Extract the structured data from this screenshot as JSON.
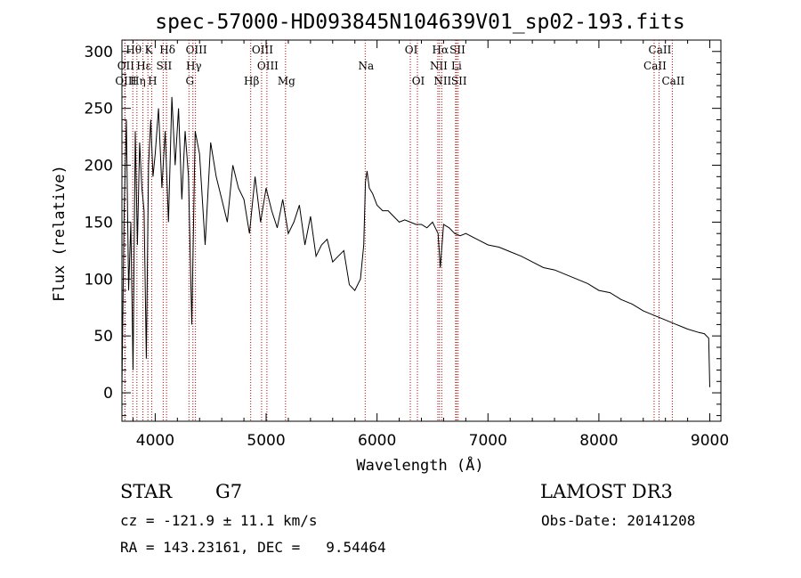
{
  "chart_data": {
    "type": "line",
    "title": "spec-57000-HD093845N104639V01_sp02-193.fits",
    "xlabel": "Wavelength (Å)",
    "ylabel": "Flux (relative)",
    "xlim": [
      3700,
      9100
    ],
    "ylim": [
      -25,
      310
    ],
    "xticks": [
      4000,
      5000,
      6000,
      7000,
      8000,
      9000
    ],
    "yticks": [
      0,
      50,
      100,
      150,
      200,
      250,
      300
    ],
    "series": [
      {
        "name": "flux",
        "x": [
          3700,
          3720,
          3740,
          3760,
          3780,
          3800,
          3820,
          3840,
          3860,
          3880,
          3900,
          3920,
          3940,
          3960,
          3980,
          4000,
          4030,
          4060,
          4090,
          4120,
          4150,
          4180,
          4210,
          4240,
          4270,
          4300,
          4330,
          4360,
          4400,
          4450,
          4500,
          4550,
          4600,
          4650,
          4700,
          4750,
          4800,
          4850,
          4900,
          4950,
          5000,
          5050,
          5100,
          5150,
          5200,
          5250,
          5300,
          5350,
          5400,
          5450,
          5500,
          5550,
          5600,
          5650,
          5700,
          5750,
          5800,
          5850,
          5880,
          5895,
          5910,
          5930,
          5960,
          6000,
          6050,
          6100,
          6150,
          6200,
          6250,
          6300,
          6350,
          6400,
          6450,
          6500,
          6550,
          6570,
          6600,
          6650,
          6700,
          6750,
          6800,
          6900,
          7000,
          7100,
          7200,
          7300,
          7400,
          7500,
          7600,
          7700,
          7800,
          7900,
          8000,
          8100,
          8200,
          8300,
          8400,
          8500,
          8600,
          8700,
          8800,
          8900,
          8950,
          8990,
          9000
        ],
        "y": [
          5,
          160,
          240,
          90,
          150,
          20,
          230,
          130,
          220,
          180,
          160,
          30,
          200,
          240,
          190,
          210,
          250,
          180,
          230,
          150,
          260,
          200,
          250,
          170,
          230,
          190,
          60,
          230,
          210,
          130,
          220,
          190,
          170,
          150,
          200,
          180,
          170,
          140,
          190,
          150,
          180,
          160,
          145,
          170,
          140,
          150,
          165,
          130,
          155,
          120,
          130,
          135,
          115,
          120,
          125,
          95,
          90,
          100,
          130,
          185,
          195,
          180,
          175,
          165,
          160,
          160,
          155,
          150,
          152,
          150,
          148,
          148,
          145,
          150,
          140,
          110,
          148,
          145,
          140,
          138,
          140,
          135,
          130,
          128,
          124,
          120,
          115,
          110,
          108,
          104,
          100,
          96,
          90,
          88,
          82,
          78,
          72,
          68,
          64,
          60,
          56,
          53,
          52,
          48,
          5
        ]
      }
    ],
    "emission_lines": [
      {
        "label": "Hθ",
        "wavelength": 3798,
        "row": 0
      },
      {
        "label": "K",
        "wavelength": 3934,
        "row": 0
      },
      {
        "label": "Hδ",
        "wavelength": 4102,
        "row": 0
      },
      {
        "label": "OIII",
        "wavelength": 4363,
        "row": 0
      },
      {
        "label": "OIII",
        "wavelength": 4959,
        "row": 0
      },
      {
        "label": "OI",
        "wavelength": 6300,
        "row": 0
      },
      {
        "label": "Hα",
        "wavelength": 6563,
        "row": 0
      },
      {
        "label": "SII",
        "wavelength": 6717,
        "row": 0
      },
      {
        "label": "CaII",
        "wavelength": 8542,
        "row": 0
      },
      {
        "label": "OII",
        "wavelength": 3727,
        "row": 1
      },
      {
        "label": "Hε",
        "wavelength": 3889,
        "row": 1
      },
      {
        "label": "SII",
        "wavelength": 4072,
        "row": 1
      },
      {
        "label": "Hγ",
        "wavelength": 4340,
        "row": 1
      },
      {
        "label": "OIII",
        "wavelength": 5007,
        "row": 1
      },
      {
        "label": "Na",
        "wavelength": 5893,
        "row": 1
      },
      {
        "label": "NII",
        "wavelength": 6548,
        "row": 1
      },
      {
        "label": "Li",
        "wavelength": 6708,
        "row": 1
      },
      {
        "label": "CaII",
        "wavelength": 8498,
        "row": 1
      },
      {
        "label": "OIII",
        "wavelength": 3727,
        "row": 2
      },
      {
        "label": "Hη",
        "wavelength": 3835,
        "row": 2
      },
      {
        "label": "H",
        "wavelength": 3968,
        "row": 2
      },
      {
        "label": "G",
        "wavelength": 4304,
        "row": 2
      },
      {
        "label": "Hβ",
        "wavelength": 4861,
        "row": 2
      },
      {
        "label": "Mg",
        "wavelength": 5175,
        "row": 2
      },
      {
        "label": "OI",
        "wavelength": 6364,
        "row": 2
      },
      {
        "label": "NII",
        "wavelength": 6583,
        "row": 2
      },
      {
        "label": "SII",
        "wavelength": 6731,
        "row": 2
      },
      {
        "label": "CaII",
        "wavelength": 8662,
        "row": 2
      }
    ]
  },
  "info": {
    "class": "STAR",
    "subclass": "G7",
    "survey": "LAMOST DR3",
    "cz": "cz = -121.9 ± 11.1 km/s",
    "obs_date": "Obs-Date: 20141208",
    "coords": "RA = 143.23161, DEC =   9.54464"
  }
}
